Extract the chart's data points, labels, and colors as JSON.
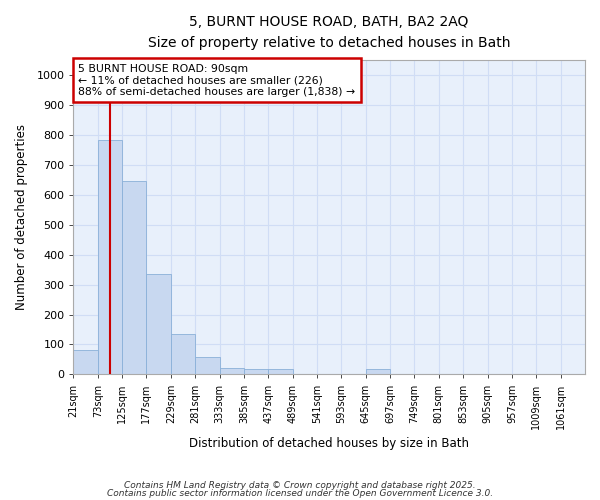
{
  "title": "5, BURNT HOUSE ROAD, BATH, BA2 2AQ",
  "subtitle": "Size of property relative to detached houses in Bath",
  "xlabel": "Distribution of detached houses by size in Bath",
  "ylabel": "Number of detached properties",
  "bar_color": "#c8d8f0",
  "bar_edge_color": "#8ab0d8",
  "bg_color": "#e8f0fb",
  "grid_color": "#d0ddf5",
  "annotation_box_color": "#cc0000",
  "annotation_lines": [
    "5 BURNT HOUSE ROAD: 90sqm",
    "← 11% of detached houses are smaller (226)",
    "88% of semi-detached houses are larger (1,838) →"
  ],
  "property_line_x": 99,
  "categories": [
    "21sqm",
    "73sqm",
    "125sqm",
    "177sqm",
    "229sqm",
    "281sqm",
    "333sqm",
    "385sqm",
    "437sqm",
    "489sqm",
    "541sqm",
    "593sqm",
    "645sqm",
    "697sqm",
    "749sqm",
    "801sqm",
    "853sqm",
    "905sqm",
    "957sqm",
    "1009sqm",
    "1061sqm"
  ],
  "bin_edges": [
    21,
    73,
    125,
    177,
    229,
    281,
    333,
    385,
    437,
    489,
    541,
    593,
    645,
    697,
    749,
    801,
    853,
    905,
    957,
    1009,
    1061,
    1113
  ],
  "values": [
    83,
    783,
    648,
    335,
    135,
    57,
    22,
    18,
    18,
    0,
    0,
    0,
    18,
    0,
    0,
    0,
    0,
    0,
    0,
    0,
    0
  ],
  "ylim": [
    0,
    1050
  ],
  "yticks": [
    0,
    100,
    200,
    300,
    400,
    500,
    600,
    700,
    800,
    900,
    1000
  ],
  "footnote1": "Contains HM Land Registry data © Crown copyright and database right 2025.",
  "footnote2": "Contains public sector information licensed under the Open Government Licence 3.0."
}
